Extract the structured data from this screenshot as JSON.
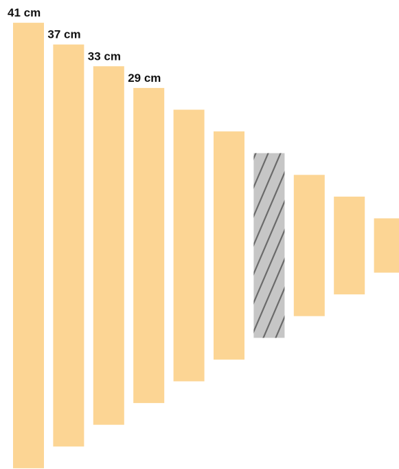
{
  "chart_data": {
    "type": "bar",
    "title": "",
    "unit": "cm",
    "values": [
      41,
      37,
      33,
      29,
      25,
      21,
      17,
      13,
      9,
      5
    ],
    "labels": [
      "41 cm",
      "37 cm",
      "33 cm",
      "29 cm",
      "",
      "",
      "",
      "",
      "",
      ""
    ],
    "highlighted_index": 6
  },
  "colors": {
    "bar_fill": "#fcd594",
    "highlight_fill": "#c6c6c6",
    "hatch_stroke": "#6a6a6a",
    "label_text": "#111111"
  }
}
